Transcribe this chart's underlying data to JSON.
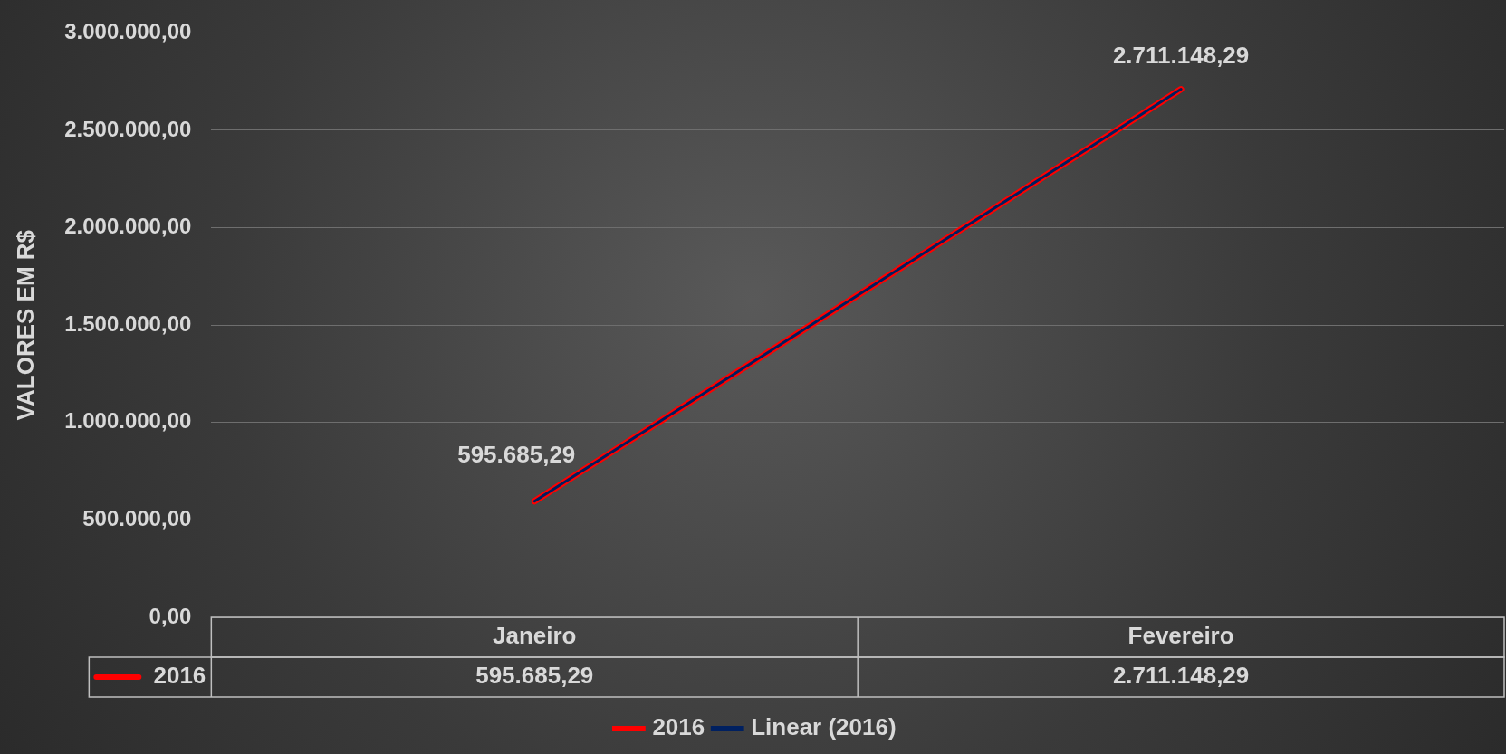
{
  "chart_data": {
    "type": "line",
    "ylabel": "VALORES EM R$",
    "categories": [
      "Janeiro",
      "Fevereiro"
    ],
    "series": [
      {
        "name": "2016",
        "color": "#ff0000",
        "values": [
          595685.29,
          2711148.29
        ],
        "value_labels": [
          "595.685,29",
          "2.711.148,29"
        ]
      },
      {
        "name": "Linear (2016)",
        "type": "line",
        "color": "#002060",
        "values": [
          596000,
          2711000
        ]
      }
    ],
    "ylim": [
      0,
      3000000
    ],
    "yticks": [
      {
        "value": 0,
        "label": "0,00"
      },
      {
        "value": 500000,
        "label": "500.000,00"
      },
      {
        "value": 1000000,
        "label": "1.000.000,00"
      },
      {
        "value": 1500000,
        "label": "1.500.000,00"
      },
      {
        "value": 2000000,
        "label": "2.000.000,00"
      },
      {
        "value": 2500000,
        "label": "2.500.000,00"
      },
      {
        "value": 3000000,
        "label": "3.000.000,00"
      }
    ],
    "grid": "y",
    "legend": "bottom",
    "marker": "none"
  }
}
